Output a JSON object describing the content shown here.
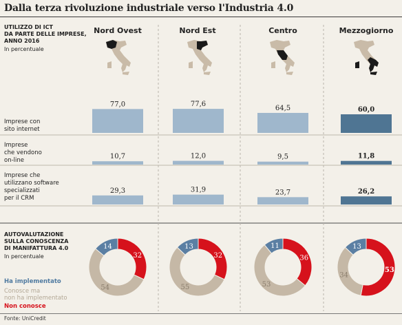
{
  "title": "Dalla terza rivoluzione industriale verso l'Industria 4.0",
  "section1": {
    "title": "UTILIZZO DI ICT DA PARTE DELLE IMPRESE, ANNO 2016",
    "title_lines": [
      "UTILIZZO DI ICT",
      "DA PARTE DELLE IMPRESE,",
      "ANNO 2016"
    ],
    "subtitle": "In percentuale"
  },
  "section2": {
    "title_lines": [
      "AUTOVALUTAZIONE",
      "SULLA CONOSCENZA",
      "DI MANIFATTURA 4.0"
    ],
    "subtitle": "In percentuale"
  },
  "legend": [
    {
      "label": "Ha implementato",
      "color": "#5b7fa3"
    },
    {
      "label": "Conosce ma non ha implementato",
      "label_lines": [
        "Conosce ma",
        "non ha implementato"
      ],
      "color": "#c5b8a6"
    },
    {
      "label": "Non conosce",
      "color": "#d6121c"
    }
  ],
  "source": "Fonte: UniCredit",
  "colors": {
    "bar": "#9fb7cc",
    "bar_highlight": "#4f7593",
    "implemented": "#5b7fa3",
    "aware": "#c5b8a6",
    "unaware": "#d6121c",
    "background": "#f3f0e9"
  },
  "chart_data": [
    {
      "type": "bar",
      "title": "UTILIZZO DI ICT DA PARTE DELLE IMPRESE, ANNO 2016",
      "subtitle": "In percentuale",
      "categories": [
        "Nord Ovest",
        "Nord Est",
        "Centro",
        "Mezzogiorno"
      ],
      "series": [
        {
          "name": "Imprese con sito internet",
          "label_lines": [
            "Imprese con",
            "sito internet"
          ],
          "values": [
            77.0,
            77.6,
            64.5,
            60.0
          ],
          "labels": [
            "77,0",
            "77,6",
            "64,5",
            "60,0"
          ]
        },
        {
          "name": "Imprese che vendono on-line",
          "label_lines": [
            "Imprese",
            "che vendono",
            "on-line"
          ],
          "values": [
            10.7,
            12.0,
            9.5,
            11.8
          ],
          "labels": [
            "10,7",
            "12,0",
            "9,5",
            "11,8"
          ]
        },
        {
          "name": "Imprese che utilizzano software specializzati per il CRM",
          "label_lines": [
            "Imprese che",
            "utilizzano software",
            "specializzati",
            "per il CRM"
          ],
          "values": [
            29.3,
            31.9,
            23.7,
            26.2
          ],
          "labels": [
            "29,3",
            "31,9",
            "23,7",
            "26,2"
          ]
        }
      ],
      "highlight_category": "Mezzogiorno"
    },
    {
      "type": "pie",
      "title": "AUTOVALUTAZIONE SULLA CONOSCENZA DI MANIFATTURA 4.0",
      "subtitle": "In percentuale",
      "categories": [
        "Nord Ovest",
        "Nord Est",
        "Centro",
        "Mezzogiorno"
      ],
      "series": [
        {
          "name": "Ha implementato",
          "values": [
            14,
            13,
            11,
            13
          ]
        },
        {
          "name": "Conosce ma non ha implementato",
          "values": [
            54,
            55,
            53,
            34
          ]
        },
        {
          "name": "Non conosce",
          "values": [
            32,
            32,
            36,
            53
          ]
        }
      ]
    }
  ]
}
